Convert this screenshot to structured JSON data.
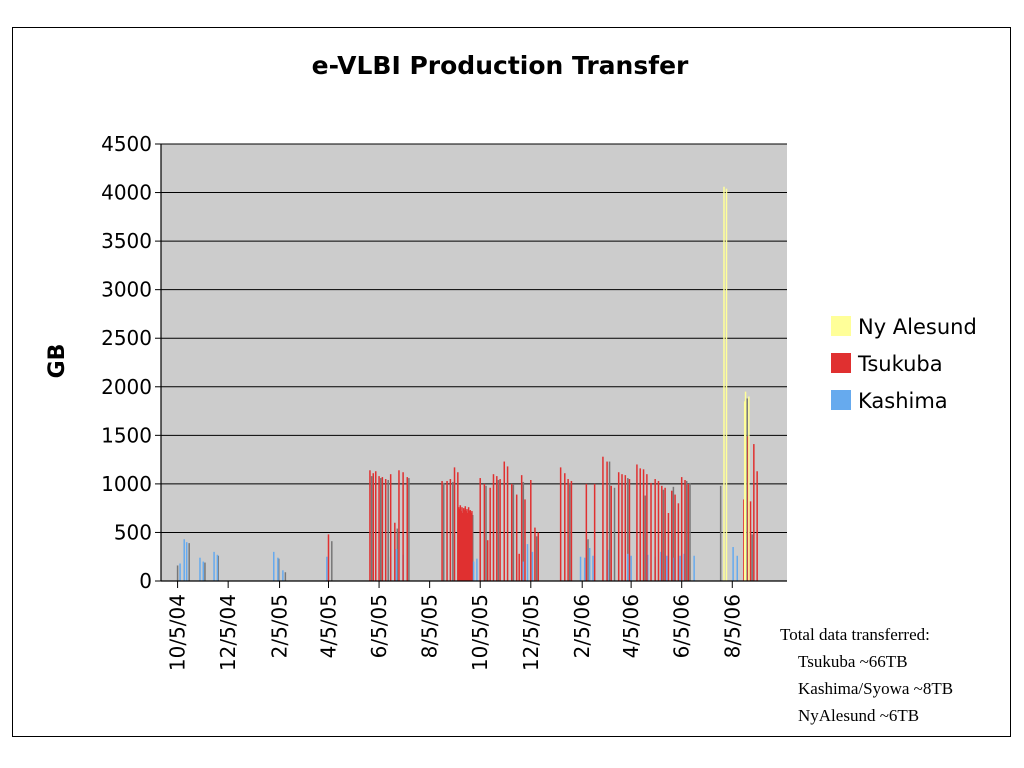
{
  "chart_data": {
    "type": "bar",
    "title": "e-VLBI Production Transfer",
    "ylabel": "GB",
    "xlabel": "",
    "ylim": [
      0,
      4500
    ],
    "yticks": [
      0,
      500,
      1000,
      1500,
      2000,
      2500,
      3000,
      3500,
      4000,
      4500
    ],
    "xlim": [
      "2004-09-15",
      "2006-10-10"
    ],
    "xticks": [
      "10/5/04",
      "12/5/04",
      "2/5/05",
      "4/5/05",
      "6/5/05",
      "8/5/05",
      "10/5/05",
      "12/5/05",
      "2/5/06",
      "4/5/06",
      "6/5/06",
      "8/5/06"
    ],
    "xtick_dates": [
      "2004-10-05",
      "2004-12-05",
      "2005-02-05",
      "2005-04-05",
      "2005-06-05",
      "2005-08-05",
      "2005-10-05",
      "2005-12-05",
      "2006-02-05",
      "2006-04-05",
      "2006-06-05",
      "2006-08-05"
    ],
    "grid": true,
    "legend_position": "right",
    "plot_background": "#cccccc",
    "series": [
      {
        "name": "Ny Alesund",
        "color": "#ffff99",
        "points": [
          [
            "2006-07-26",
            4060
          ],
          [
            "2006-07-29",
            4040
          ],
          [
            "2006-08-20",
            1850
          ],
          [
            "2006-08-21",
            1950
          ],
          [
            "2006-08-25",
            1900
          ]
        ]
      },
      {
        "name": "Tsukuba",
        "color": "#e03030",
        "points": [
          [
            "2005-04-05",
            480
          ],
          [
            "2005-05-25",
            1140
          ],
          [
            "2005-05-29",
            1110
          ],
          [
            "2005-06-01",
            1130
          ],
          [
            "2005-06-05",
            1080
          ],
          [
            "2005-06-09",
            1070
          ],
          [
            "2005-06-13",
            1050
          ],
          [
            "2005-06-19",
            1100
          ],
          [
            "2005-06-24",
            600
          ],
          [
            "2005-06-29",
            1140
          ],
          [
            "2005-07-04",
            1120
          ],
          [
            "2005-07-09",
            1070
          ],
          [
            "2005-08-20",
            1030
          ],
          [
            "2005-08-26",
            1030
          ],
          [
            "2005-08-30",
            1050
          ],
          [
            "2005-09-04",
            1170
          ],
          [
            "2005-09-08",
            1120
          ],
          [
            "2005-09-09",
            760
          ],
          [
            "2005-09-10",
            740
          ],
          [
            "2005-09-11",
            780
          ],
          [
            "2005-09-12",
            720
          ],
          [
            "2005-09-13",
            760
          ],
          [
            "2005-09-14",
            700
          ],
          [
            "2005-09-15",
            750
          ],
          [
            "2005-09-16",
            730
          ],
          [
            "2005-09-17",
            770
          ],
          [
            "2005-09-18",
            720
          ],
          [
            "2005-09-19",
            740
          ],
          [
            "2005-09-20",
            700
          ],
          [
            "2005-09-21",
            760
          ],
          [
            "2005-09-22",
            720
          ],
          [
            "2005-09-23",
            730
          ],
          [
            "2005-09-24",
            700
          ],
          [
            "2005-09-25",
            720
          ],
          [
            "2005-10-05",
            1060
          ],
          [
            "2005-10-10",
            1000
          ],
          [
            "2005-10-14",
            420
          ],
          [
            "2005-10-17",
            960
          ],
          [
            "2005-10-21",
            1100
          ],
          [
            "2005-10-25",
            1080
          ],
          [
            "2005-10-29",
            1050
          ],
          [
            "2005-11-03",
            1230
          ],
          [
            "2005-11-07",
            1180
          ],
          [
            "2005-11-12",
            1000
          ],
          [
            "2005-11-18",
            890
          ],
          [
            "2005-11-21",
            280
          ],
          [
            "2005-11-24",
            1090
          ],
          [
            "2005-11-28",
            840
          ],
          [
            "2005-12-05",
            1040
          ],
          [
            "2005-12-10",
            550
          ],
          [
            "2005-12-14",
            500
          ],
          [
            "2006-01-10",
            1170
          ],
          [
            "2006-01-15",
            1110
          ],
          [
            "2006-01-19",
            1050
          ],
          [
            "2006-01-23",
            1030
          ],
          [
            "2006-02-10",
            1000
          ],
          [
            "2006-02-20",
            1000
          ],
          [
            "2006-03-02",
            1280
          ],
          [
            "2006-03-07",
            1230
          ],
          [
            "2006-03-12",
            980
          ],
          [
            "2006-03-21",
            1120
          ],
          [
            "2006-03-25",
            1100
          ],
          [
            "2006-03-29",
            1090
          ],
          [
            "2006-04-03",
            1050
          ],
          [
            "2006-04-12",
            1200
          ],
          [
            "2006-04-16",
            1160
          ],
          [
            "2006-04-20",
            1150
          ],
          [
            "2006-04-24",
            1100
          ],
          [
            "2006-04-29",
            1010
          ],
          [
            "2006-05-04",
            1050
          ],
          [
            "2006-05-08",
            1030
          ],
          [
            "2006-05-12",
            980
          ],
          [
            "2006-05-16",
            960
          ],
          [
            "2006-05-20",
            700
          ],
          [
            "2006-05-24",
            930
          ],
          [
            "2006-05-28",
            890
          ],
          [
            "2006-06-01",
            800
          ],
          [
            "2006-06-05",
            1070
          ],
          [
            "2006-06-09",
            1040
          ],
          [
            "2006-06-13",
            1000
          ],
          [
            "2006-08-19",
            840
          ],
          [
            "2006-08-24",
            1490
          ],
          [
            "2006-08-27",
            820
          ],
          [
            "2006-08-31",
            1410
          ],
          [
            "2006-09-04",
            1130
          ]
        ]
      },
      {
        "name": "Kashima",
        "color": "#66aaee",
        "points": [
          [
            "2004-10-08",
            180
          ],
          [
            "2004-10-13",
            430
          ],
          [
            "2004-10-16",
            400
          ],
          [
            "2004-11-01",
            240
          ],
          [
            "2004-11-05",
            200
          ],
          [
            "2004-11-18",
            300
          ],
          [
            "2004-11-22",
            270
          ],
          [
            "2005-01-29",
            300
          ],
          [
            "2005-02-03",
            240
          ],
          [
            "2005-02-09",
            110
          ],
          [
            "2005-04-03",
            250
          ],
          [
            "2005-06-19",
            250
          ],
          [
            "2005-06-26",
            330
          ],
          [
            "2005-07-04",
            270
          ],
          [
            "2005-09-24",
            220
          ],
          [
            "2005-09-27",
            200
          ],
          [
            "2005-10-01",
            230
          ],
          [
            "2005-11-26",
            200
          ],
          [
            "2005-12-01",
            380
          ],
          [
            "2005-12-07",
            300
          ],
          [
            "2006-02-03",
            250
          ],
          [
            "2006-02-08",
            240
          ],
          [
            "2006-02-14",
            340
          ],
          [
            "2006-02-18",
            260
          ],
          [
            "2006-03-08",
            320
          ],
          [
            "2006-04-01",
            280
          ],
          [
            "2006-04-05",
            260
          ],
          [
            "2006-04-25",
            270
          ],
          [
            "2006-05-04",
            250
          ],
          [
            "2006-05-11",
            300
          ],
          [
            "2006-05-18",
            260
          ],
          [
            "2006-05-27",
            240
          ],
          [
            "2006-06-03",
            260
          ],
          [
            "2006-06-08",
            280
          ],
          [
            "2006-06-20",
            260
          ],
          [
            "2006-08-06",
            350
          ],
          [
            "2006-08-11",
            260
          ]
        ]
      },
      {
        "name": "",
        "color": "#777777",
        "points": [
          [
            "2004-10-05",
            160
          ],
          [
            "2004-10-19",
            390
          ],
          [
            "2004-11-07",
            190
          ],
          [
            "2004-11-23",
            260
          ],
          [
            "2005-02-04",
            230
          ],
          [
            "2005-02-12",
            90
          ],
          [
            "2005-04-09",
            410
          ],
          [
            "2005-05-27",
            1080
          ],
          [
            "2005-06-07",
            1060
          ],
          [
            "2005-06-16",
            1040
          ],
          [
            "2005-06-27",
            540
          ],
          [
            "2005-07-11",
            1060
          ],
          [
            "2005-08-22",
            1010
          ],
          [
            "2005-09-02",
            1020
          ],
          [
            "2005-09-26",
            680
          ],
          [
            "2005-10-12",
            980
          ],
          [
            "2005-10-27",
            1040
          ],
          [
            "2005-11-14",
            990
          ],
          [
            "2005-11-26",
            1020
          ],
          [
            "2005-12-12",
            460
          ],
          [
            "2006-01-21",
            1010
          ],
          [
            "2006-02-12",
            430
          ],
          [
            "2006-03-10",
            1230
          ],
          [
            "2006-03-16",
            960
          ],
          [
            "2006-04-01",
            1060
          ],
          [
            "2006-04-22",
            880
          ],
          [
            "2006-05-14",
            940
          ],
          [
            "2006-05-26",
            970
          ],
          [
            "2006-06-11",
            1030
          ],
          [
            "2006-06-15",
            1010
          ],
          [
            "2006-07-22",
            980
          ],
          [
            "2006-08-23",
            1880
          ],
          [
            "2006-08-29",
            480
          ]
        ]
      }
    ]
  },
  "notes": {
    "heading": "Total data transferred:",
    "lines": [
      "Tsukuba  ~66TB",
      "Kashima/Syowa  ~8TB",
      "NyAlesund ~6TB"
    ]
  }
}
